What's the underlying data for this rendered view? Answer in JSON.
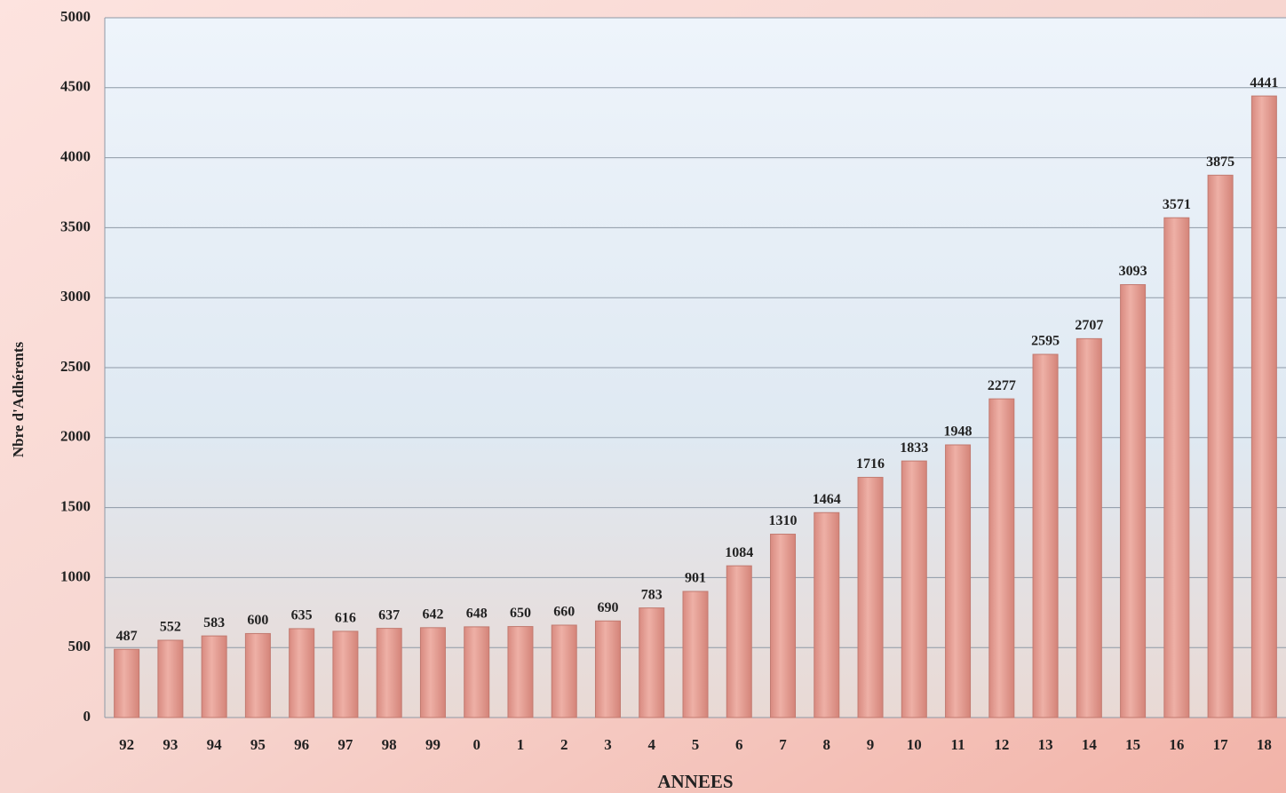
{
  "chart_data": {
    "type": "bar",
    "x_label": "ANNEES",
    "y_label": "Nbre d'Adhérents",
    "categories": [
      "92",
      "93",
      "94",
      "95",
      "96",
      "97",
      "98",
      "99",
      "0",
      "1",
      "2",
      "3",
      "4",
      "5",
      "6",
      "7",
      "8",
      "9",
      "10",
      "11",
      "12",
      "13",
      "14",
      "15",
      "16",
      "17",
      "18"
    ],
    "values": [
      487,
      552,
      583,
      600,
      635,
      616,
      637,
      642,
      648,
      650,
      660,
      690,
      783,
      901,
      1084,
      1310,
      1464,
      1716,
      1833,
      1948,
      2277,
      2595,
      2707,
      3093,
      3571,
      3875,
      4441
    ],
    "color": "#e59e93",
    "ylim": [
      0,
      5000
    ],
    "yticks": [
      0,
      500,
      1000,
      1500,
      2000,
      2500,
      3000,
      3500,
      4000,
      4500,
      5000
    ],
    "grid": true
  }
}
